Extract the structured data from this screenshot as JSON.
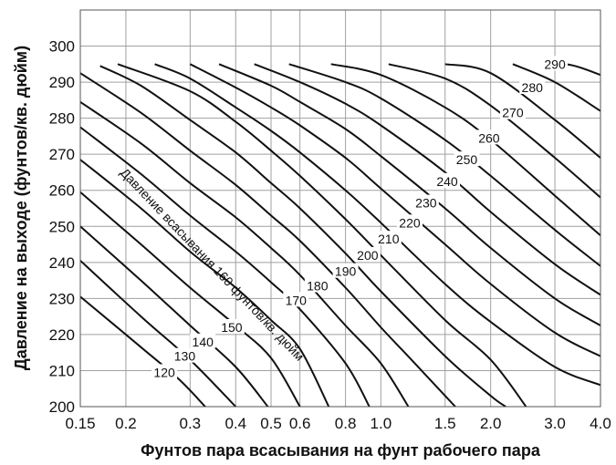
{
  "chart_data": {
    "type": "line",
    "x_scale": "log",
    "xlim": [
      0.15,
      4.0
    ],
    "ylim": [
      200,
      310
    ],
    "x_tick_labels": [
      {
        "v": 0.15,
        "t": "0.15"
      },
      {
        "v": 0.2,
        "t": "0.2"
      },
      {
        "v": 0.3,
        "t": "0.3"
      },
      {
        "v": 0.4,
        "t": "0.4"
      },
      {
        "v": 0.5,
        "t": "0.5"
      },
      {
        "v": 0.6,
        "t": "0.6"
      },
      {
        "v": 0.8,
        "t": "0.8"
      },
      {
        "v": 1.0,
        "t": "1.0"
      },
      {
        "v": 1.5,
        "t": "1.5"
      },
      {
        "v": 2.0,
        "t": "2.0"
      },
      {
        "v": 3.0,
        "t": "3.0"
      },
      {
        "v": 4.0,
        "t": "4.0"
      }
    ],
    "x_gridlines": [
      0.15,
      0.2,
      0.3,
      0.4,
      0.5,
      0.6,
      0.8,
      1.0,
      1.5,
      2.0,
      3.0,
      4.0
    ],
    "y_ticks": [
      200,
      210,
      220,
      230,
      240,
      250,
      260,
      270,
      280,
      290,
      300
    ],
    "y_gridlines": [
      200,
      210,
      220,
      230,
      240,
      250,
      260,
      270,
      280,
      290,
      300,
      310
    ],
    "grid": true,
    "xlabel": "Фунтов пара всасывания на фунт рабочего пара",
    "ylabel": "Давление на выходе (фунтов/кв. дюйм)",
    "annotation": "Давление всасывания 160 фунтов/кв. дюйм",
    "series": [
      {
        "name": "120",
        "label_at": [
          0.255,
          209.5
        ],
        "points": [
          [
            0.15,
            230.5
          ],
          [
            0.22,
            216.5
          ],
          [
            0.28,
            207.5
          ],
          [
            0.33,
            200
          ]
        ]
      },
      {
        "name": "130",
        "label_at": [
          0.29,
          214
        ],
        "points": [
          [
            0.15,
            240.5
          ],
          [
            0.22,
            225
          ],
          [
            0.3,
            213
          ],
          [
            0.4,
            200
          ]
        ]
      },
      {
        "name": "140",
        "label_at": [
          0.325,
          218
        ],
        "points": [
          [
            0.15,
            250
          ],
          [
            0.22,
            235
          ],
          [
            0.3,
            222.5
          ],
          [
            0.4,
            211
          ],
          [
            0.49,
            200
          ]
        ]
      },
      {
        "name": "150",
        "label_at": [
          0.39,
          222
        ],
        "points": [
          [
            0.15,
            259.5
          ],
          [
            0.22,
            245
          ],
          [
            0.3,
            233
          ],
          [
            0.4,
            222.5
          ],
          [
            0.5,
            213.5
          ],
          [
            0.6,
            200
          ]
        ]
      },
      {
        "name": "160",
        "points": [
          [
            0.15,
            268.5
          ],
          [
            0.22,
            255
          ],
          [
            0.3,
            243
          ],
          [
            0.4,
            233
          ],
          [
            0.5,
            224
          ],
          [
            0.6,
            216
          ],
          [
            0.72,
            200
          ]
        ]
      },
      {
        "name": "170",
        "label_at": [
          0.585,
          229.5
        ],
        "points": [
          [
            0.15,
            277.5
          ],
          [
            0.22,
            264.5
          ],
          [
            0.3,
            253
          ],
          [
            0.4,
            243
          ],
          [
            0.5,
            234.5
          ],
          [
            0.6,
            227
          ],
          [
            0.8,
            212
          ],
          [
            0.93,
            200
          ]
        ]
      },
      {
        "name": "180",
        "label_at": [
          0.67,
          233.5
        ],
        "points": [
          [
            0.15,
            284.5
          ],
          [
            0.22,
            273
          ],
          [
            0.3,
            262
          ],
          [
            0.4,
            252.5
          ],
          [
            0.5,
            244
          ],
          [
            0.6,
            236.5
          ],
          [
            0.8,
            222.5
          ],
          [
            1.0,
            212
          ],
          [
            1.19,
            200
          ]
        ]
      },
      {
        "name": "190",
        "label_at": [
          0.8,
          237.5
        ],
        "points": [
          [
            0.15,
            292.5
          ],
          [
            0.22,
            281.5
          ],
          [
            0.3,
            271
          ],
          [
            0.4,
            261.5
          ],
          [
            0.5,
            253
          ],
          [
            0.6,
            246
          ],
          [
            0.8,
            233
          ],
          [
            1.0,
            222
          ],
          [
            1.2,
            213.5
          ],
          [
            1.5,
            203
          ],
          [
            1.6,
            200
          ]
        ]
      },
      {
        "name": "200",
        "label_at": [
          0.92,
          242
        ],
        "points": [
          [
            0.17,
            294.5
          ],
          [
            0.22,
            289
          ],
          [
            0.3,
            279.5
          ],
          [
            0.4,
            270.5
          ],
          [
            0.5,
            262
          ],
          [
            0.6,
            255
          ],
          [
            0.8,
            242.5
          ],
          [
            1.0,
            232
          ],
          [
            1.5,
            214
          ],
          [
            2.0,
            203
          ],
          [
            2.2,
            200
          ]
        ]
      },
      {
        "name": "210",
        "label_at": [
          1.05,
          246.5
        ],
        "points": [
          [
            0.19,
            295
          ],
          [
            0.3,
            287.5
          ],
          [
            0.4,
            279
          ],
          [
            0.5,
            271
          ],
          [
            0.6,
            264
          ],
          [
            0.8,
            252
          ],
          [
            1.0,
            242
          ],
          [
            1.5,
            224
          ],
          [
            2.0,
            213
          ],
          [
            2.5,
            200
          ]
        ]
      },
      {
        "name": "220",
        "label_at": [
          1.2,
          251
        ],
        "points": [
          [
            0.24,
            295
          ],
          [
            0.3,
            291
          ],
          [
            0.4,
            283
          ],
          [
            0.5,
            276.5
          ],
          [
            0.6,
            270.5
          ],
          [
            0.8,
            260
          ],
          [
            1.0,
            251
          ],
          [
            1.5,
            234
          ],
          [
            2.0,
            223.5
          ],
          [
            3.0,
            211
          ],
          [
            4.0,
            206
          ]
        ]
      },
      {
        "name": "230",
        "label_at": [
          1.33,
          256.5
        ],
        "points": [
          [
            0.3,
            295
          ],
          [
            0.4,
            288.5
          ],
          [
            0.5,
            283
          ],
          [
            0.6,
            278
          ],
          [
            0.8,
            269
          ],
          [
            1.0,
            260.5
          ],
          [
            1.5,
            245
          ],
          [
            2.0,
            234
          ],
          [
            3.0,
            220.5
          ],
          [
            4.0,
            214
          ]
        ]
      },
      {
        "name": "240",
        "label_at": [
          1.52,
          262.5
        ],
        "points": [
          [
            0.36,
            295
          ],
          [
            0.5,
            289
          ],
          [
            0.6,
            284.5
          ],
          [
            0.8,
            277
          ],
          [
            1.0,
            269.5
          ],
          [
            1.5,
            255
          ],
          [
            2.0,
            244
          ],
          [
            3.0,
            230
          ],
          [
            4.0,
            222.5
          ]
        ]
      },
      {
        "name": "250",
        "label_at": [
          1.72,
          268.5
        ],
        "points": [
          [
            0.45,
            295
          ],
          [
            0.6,
            290
          ],
          [
            0.8,
            284
          ],
          [
            1.0,
            278
          ],
          [
            1.5,
            265
          ],
          [
            2.0,
            254
          ],
          [
            3.0,
            239.5
          ],
          [
            4.0,
            231
          ]
        ]
      },
      {
        "name": "260",
        "label_at": [
          1.98,
          274.5
        ],
        "points": [
          [
            0.56,
            295
          ],
          [
            0.8,
            290
          ],
          [
            1.0,
            285.5
          ],
          [
            1.5,
            274
          ],
          [
            2.0,
            264
          ],
          [
            3.0,
            249
          ],
          [
            4.0,
            239
          ]
        ]
      },
      {
        "name": "270",
        "label_at": [
          2.3,
          281.5
        ],
        "points": [
          [
            0.73,
            295
          ],
          [
            1.0,
            292
          ],
          [
            1.5,
            283
          ],
          [
            2.0,
            274
          ],
          [
            3.0,
            258.5
          ],
          [
            4.0,
            247.5
          ]
        ]
      },
      {
        "name": "280",
        "label_at": [
          2.6,
          288.5
        ],
        "points": [
          [
            1.05,
            295
          ],
          [
            1.5,
            291
          ],
          [
            2.0,
            283.5
          ],
          [
            3.0,
            269
          ],
          [
            4.0,
            258
          ]
        ]
      },
      {
        "name": "290",
        "label_at": [
          3.0,
          295
        ],
        "points": [
          [
            1.5,
            295
          ],
          [
            2.0,
            292.5
          ],
          [
            3.0,
            279.5
          ],
          [
            4.0,
            269
          ]
        ]
      },
      {
        "name": "",
        "points": [
          [
            2.3,
            295
          ],
          [
            3.0,
            290
          ],
          [
            4.0,
            282
          ]
        ]
      },
      {
        "name": "",
        "points": [
          [
            2.8,
            296
          ],
          [
            3.4,
            294.5
          ],
          [
            4.0,
            292
          ]
        ]
      }
    ]
  }
}
